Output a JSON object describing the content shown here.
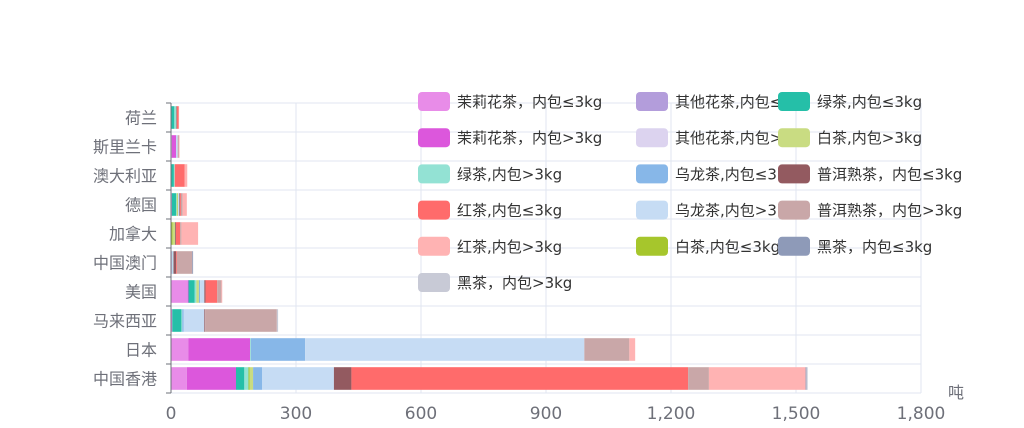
{
  "chart_data": {
    "type": "bar",
    "orientation": "horizontal",
    "stacked": true,
    "categories": [
      "中国香港",
      "日本",
      "马来西亚",
      "美国",
      "中国澳门",
      "加拿大",
      "德国",
      "澳大利亚",
      "斯里兰卡",
      "荷兰"
    ],
    "x_unit": "吨",
    "xlim": [
      0,
      1800
    ],
    "x_ticks": [
      "0",
      "300",
      "600",
      "900",
      "1,200",
      "1,500",
      "1,800"
    ],
    "grid": true,
    "legend_position": "top-right",
    "series": [
      {
        "name": "茉莉花茶，内包≤3kg",
        "color": "#e88ce8",
        "values": [
          38,
          42,
          3,
          40,
          2,
          1,
          2,
          1,
          2,
          1
        ]
      },
      {
        "name": "茉莉花茶，内包>3kg",
        "color": "#dc57dc",
        "values": [
          118,
          148,
          0,
          2,
          0,
          0,
          0,
          0,
          10,
          0
        ]
      },
      {
        "name": "绿茶,内包>3kg",
        "color": "#93e2d4",
        "values": [
          10,
          2,
          2,
          4,
          1,
          0,
          2,
          2,
          0,
          5
        ]
      },
      {
        "name": "红茶,内包≤3kg",
        "color": "#ff6b6b",
        "values": [
          808,
          0,
          0,
          28,
          2,
          10,
          2,
          24,
          0,
          4
        ]
      },
      {
        "name": "红茶,内包>3kg",
        "color": "#ffb3b3",
        "values": [
          232,
          14,
          0,
          2,
          0,
          40,
          10,
          6,
          1,
          1
        ]
      },
      {
        "name": "其他花茶,内包≤3kg",
        "color": "#b39ddb",
        "values": [
          0,
          0,
          0,
          0,
          0,
          0,
          0,
          0,
          0,
          0
        ]
      },
      {
        "name": "其他花茶,内包>3kg",
        "color": "#dcd3ef",
        "values": [
          0,
          0,
          0,
          0,
          0,
          0,
          0,
          0,
          0,
          0
        ]
      },
      {
        "name": "乌龙茶,内包≤3kg",
        "color": "#87b7e8",
        "values": [
          22,
          130,
          3,
          3,
          0,
          0,
          0,
          0,
          0,
          0
        ]
      },
      {
        "name": "乌龙茶,内包>3kg",
        "color": "#c6dcf4",
        "values": [
          172,
          670,
          50,
          10,
          3,
          0,
          3,
          0,
          4,
          0
        ]
      },
      {
        "name": "白茶,内包≤3kg",
        "color": "#a6c62c",
        "values": [
          3,
          0,
          0,
          0,
          0,
          3,
          1,
          0,
          0,
          0
        ]
      },
      {
        "name": "绿茶,内包≤3kg",
        "color": "#25bfa8",
        "values": [
          20,
          0,
          22,
          15,
          0,
          0,
          10,
          6,
          0,
          7
        ]
      },
      {
        "name": "白茶,内包>3kg",
        "color": "#c9dc82",
        "values": [
          8,
          0,
          0,
          6,
          0,
          6,
          2,
          0,
          0,
          0
        ]
      },
      {
        "name": "普洱熟茶，内包≤3kg",
        "color": "#935a60",
        "values": [
          42,
          0,
          2,
          3,
          6,
          2,
          2,
          0,
          0,
          1
        ]
      },
      {
        "name": "普洱熟茶，内包>3kg",
        "color": "#c9a7a8",
        "values": [
          50,
          108,
          172,
          10,
          37,
          3,
          4,
          0,
          3,
          0
        ]
      },
      {
        "name": "黑茶，内包≤3kg",
        "color": "#8e9ab8",
        "values": [
          2,
          0,
          0,
          0,
          2,
          0,
          0,
          0,
          0,
          0
        ]
      },
      {
        "name": "黑茶，内包>3kg",
        "color": "#c8cad6",
        "values": [
          3,
          0,
          3,
          0,
          0,
          0,
          0,
          0,
          0,
          0
        ]
      }
    ],
    "legend_order": [
      "茉莉花茶，内包≤3kg",
      "其他花茶,内包≤3kg",
      "绿茶,内包≤3kg",
      "茉莉花茶，内包>3kg",
      "其他花茶,内包>3kg",
      "白茶,内包>3kg",
      "绿茶,内包>3kg",
      "乌龙茶,内包≤3kg",
      "普洱熟茶，内包≤3kg",
      "红茶,内包≤3kg",
      "乌龙茶,内包>3kg",
      "普洱熟茶，内包>3kg",
      "红茶,内包>3kg",
      "白茶,内包≤3kg",
      "黑茶，内包≤3kg",
      "黑茶，内包>3kg"
    ],
    "stack_order": [
      "茉莉花茶，内包≤3kg",
      "茉莉花茶，内包>3kg",
      "其他花茶,内包≤3kg",
      "其他花茶,内包>3kg",
      "绿茶,内包≤3kg",
      "绿茶,内包>3kg",
      "白茶,内包≤3kg",
      "白茶,内包>3kg",
      "乌龙茶,内包≤3kg",
      "乌龙茶,内包>3kg",
      "普洱熟茶，内包≤3kg",
      "红茶,内包≤3kg",
      "普洱熟茶，内包>3kg",
      "红茶,内包>3kg",
      "黑茶，内包≤3kg",
      "黑茶，内包>3kg"
    ]
  }
}
